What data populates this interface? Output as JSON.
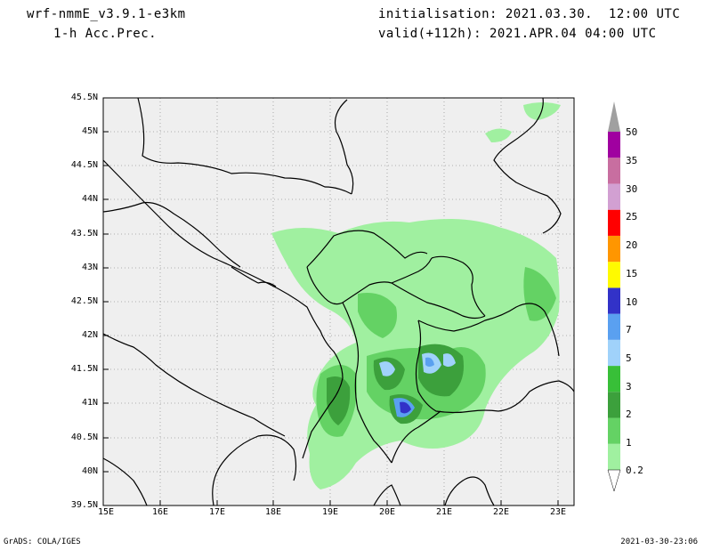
{
  "header": {
    "model": "wrf-nmmE_v3.9.1-e3km",
    "field": "1-h Acc.Prec.",
    "initialisation": "initialisation: 2021.03.30.  12:00 UTC",
    "valid": "valid(+112h): 2021.APR.04 04:00 UTC"
  },
  "map": {
    "lat_labels": [
      "45.5N",
      "45N",
      "44.5N",
      "44N",
      "43.5N",
      "43N",
      "42.5N",
      "42N",
      "41.5N",
      "41N",
      "40.5N",
      "40N",
      "39.5N"
    ],
    "lon_labels": [
      "15E",
      "16E",
      "17E",
      "18E",
      "19E",
      "20E",
      "21E",
      "22E",
      "23E"
    ],
    "lat_range": [
      39.5,
      45.5
    ],
    "lon_range": [
      15,
      23.3
    ],
    "grid": "dotted",
    "background_color": "#efefef",
    "border_color": "#000000"
  },
  "colorbar": {
    "labels": [
      "0.2",
      "1",
      "2",
      "3",
      "5",
      "7",
      "10",
      "15",
      "20",
      "25",
      "30",
      "35",
      "50"
    ],
    "colors": [
      "#a0f0a0",
      "#64d264",
      "#3ca03c",
      "#38bf38",
      "#a0d2fa",
      "#5aa0f0",
      "#3232c8",
      "#fffa00",
      "#ff9600",
      "#ff0000",
      "#d2a0d2",
      "#c86ea0",
      "#a000a0"
    ],
    "cap_top_color": "#a0a0a0"
  },
  "footer": {
    "left": "GrADS: COLA/IGES",
    "right": "2021-03-30-23:06"
  }
}
